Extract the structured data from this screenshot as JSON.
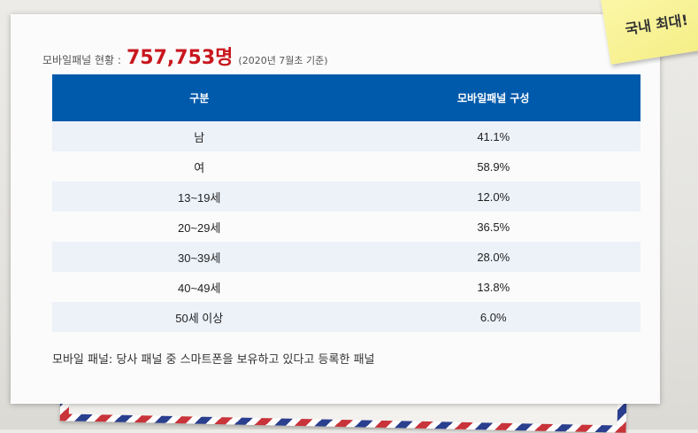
{
  "sticky_note": {
    "text": "국내 최대!"
  },
  "summary": {
    "label": "모바일패널 현황 :",
    "total": "757,753명",
    "note": "(2020년 7월초 기준)"
  },
  "table": {
    "headers": [
      "구분",
      "모바일패널 구성"
    ],
    "rows": [
      {
        "category": "남",
        "value": "41.1%"
      },
      {
        "category": "여",
        "value": "58.9%"
      },
      {
        "category": "13~19세",
        "value": "12.0%"
      },
      {
        "category": "20~29세",
        "value": "36.5%"
      },
      {
        "category": "30~39세",
        "value": "28.0%"
      },
      {
        "category": "40~49세",
        "value": "13.8%"
      },
      {
        "category": "50세 이상",
        "value": "6.0%"
      }
    ]
  },
  "footnote": "모바일 패널: 당사 패널 중 스마트폰을 보유하고 있다고 등록한 패널",
  "colors": {
    "header_bg": "#005aab",
    "total_red": "#c9171e",
    "stripe_row": "#edf2f9"
  }
}
